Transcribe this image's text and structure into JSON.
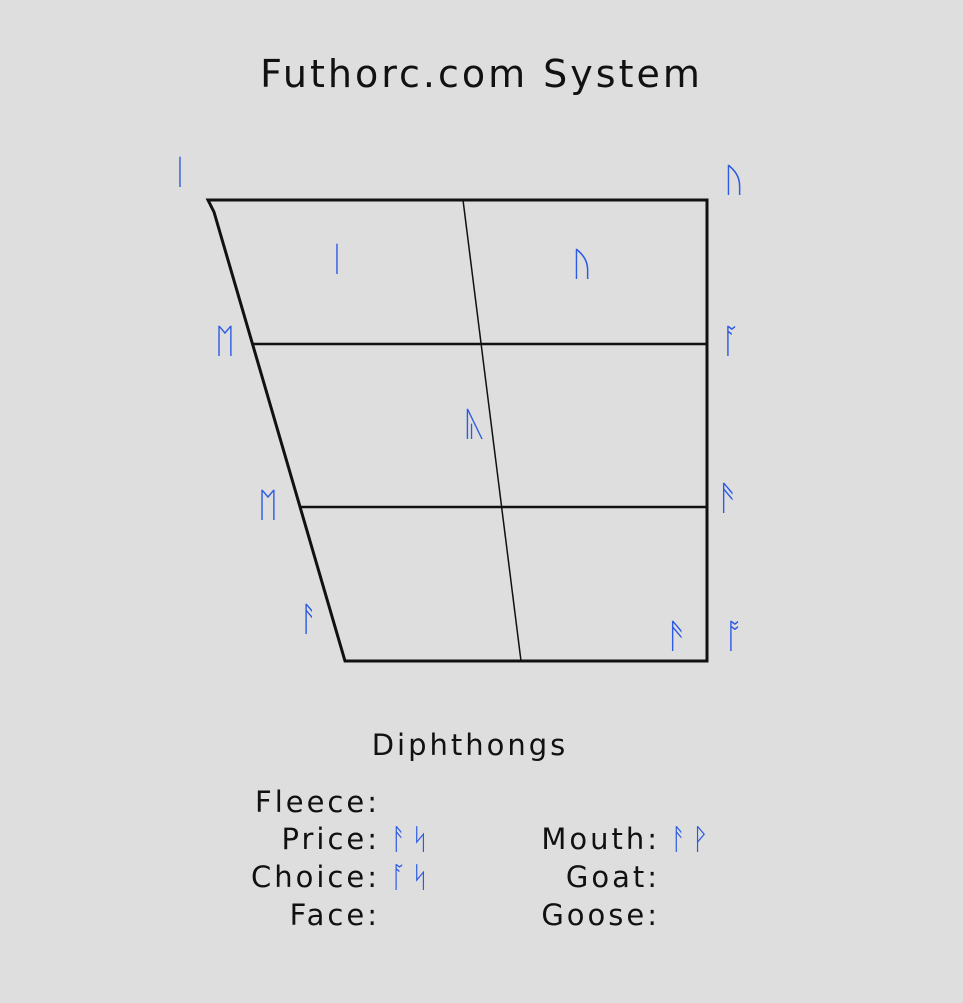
{
  "title": "Futhorc.com System",
  "colors": {
    "background": "#dedede",
    "rune": "#2d5be3",
    "line": "#111111"
  },
  "vowel_chart": {
    "outer_runes": {
      "top_left": "ᛁ",
      "top_right": "ᚢ",
      "mid_left": "ᛖ",
      "mid_right": "ᚪ",
      "lowmid_left": "ᛖ",
      "lowmid_right": "ᚫ",
      "bottom_left": "ᚨ",
      "bottom_center_right": "ᚫ",
      "bottom_right": "ᚩ"
    },
    "inner_runes": {
      "near_close_front": "ᛁ",
      "near_close_back": "ᚢ",
      "central": "ᚣ"
    }
  },
  "diphthongs": {
    "heading": "Diphthongs",
    "left": [
      {
        "label": "Fleece:",
        "runes": ""
      },
      {
        "label": "Price:",
        "runes": "ᚨᛋ"
      },
      {
        "label": "Choice:",
        "runes": "ᚪᛋ"
      },
      {
        "label": "Face:",
        "runes": ""
      }
    ],
    "right": [
      {
        "label": "Mouth:",
        "runes": "ᚨᚹ"
      },
      {
        "label": "Goat:",
        "runes": ""
      },
      {
        "label": "Goose:",
        "runes": ""
      }
    ]
  }
}
